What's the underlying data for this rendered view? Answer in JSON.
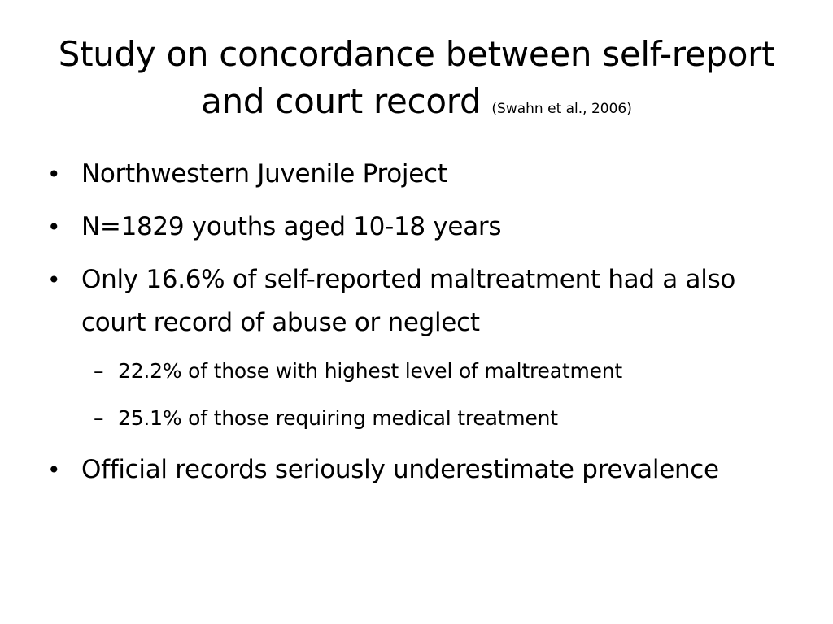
{
  "slide": {
    "title_main": "Study on concordance between self-report and court record",
    "title_citation": "(Swahn et al., 2006)",
    "bullet_marker": "•",
    "sub_marker": "–",
    "bullets": [
      {
        "text": "Northwestern Juvenile Project"
      },
      {
        "text": "N=1829 youths aged 10-18 years"
      },
      {
        "text": "Only 16.6% of self-reported maltreatment had a also court record of abuse or neglect"
      },
      {
        "text": "Official records seriously underestimate prevalence"
      }
    ],
    "sub_bullets": [
      {
        "text": "22.2% of those with highest level of maltreatment"
      },
      {
        "text": "25.1% of those requiring medical treatment"
      }
    ]
  }
}
